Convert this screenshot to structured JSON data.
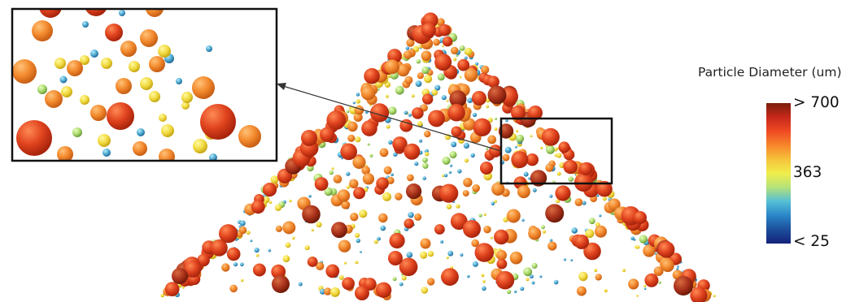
{
  "colorbar": {
    "title": "Particle Diameter (um)",
    "max_label": "> 700",
    "mid_label": "363",
    "min_label": "< 25",
    "gradient": [
      "#7a1e0a",
      "#c7281a",
      "#ef4a23",
      "#f7862b",
      "#f6c23a",
      "#f0ee4c",
      "#b4e27a",
      "#55bfd6",
      "#2a86c8",
      "#1c4e9c",
      "#14237a"
    ]
  },
  "scene": {
    "subject": "pile of spherical particles colored by diameter",
    "zoom_inset": true,
    "zoom_arrow": true,
    "particle_colors": {
      "large": "#d83a1c",
      "medium": "#f08a30",
      "small": "#f2dc48",
      "tiny": "#4aa6cc"
    }
  }
}
